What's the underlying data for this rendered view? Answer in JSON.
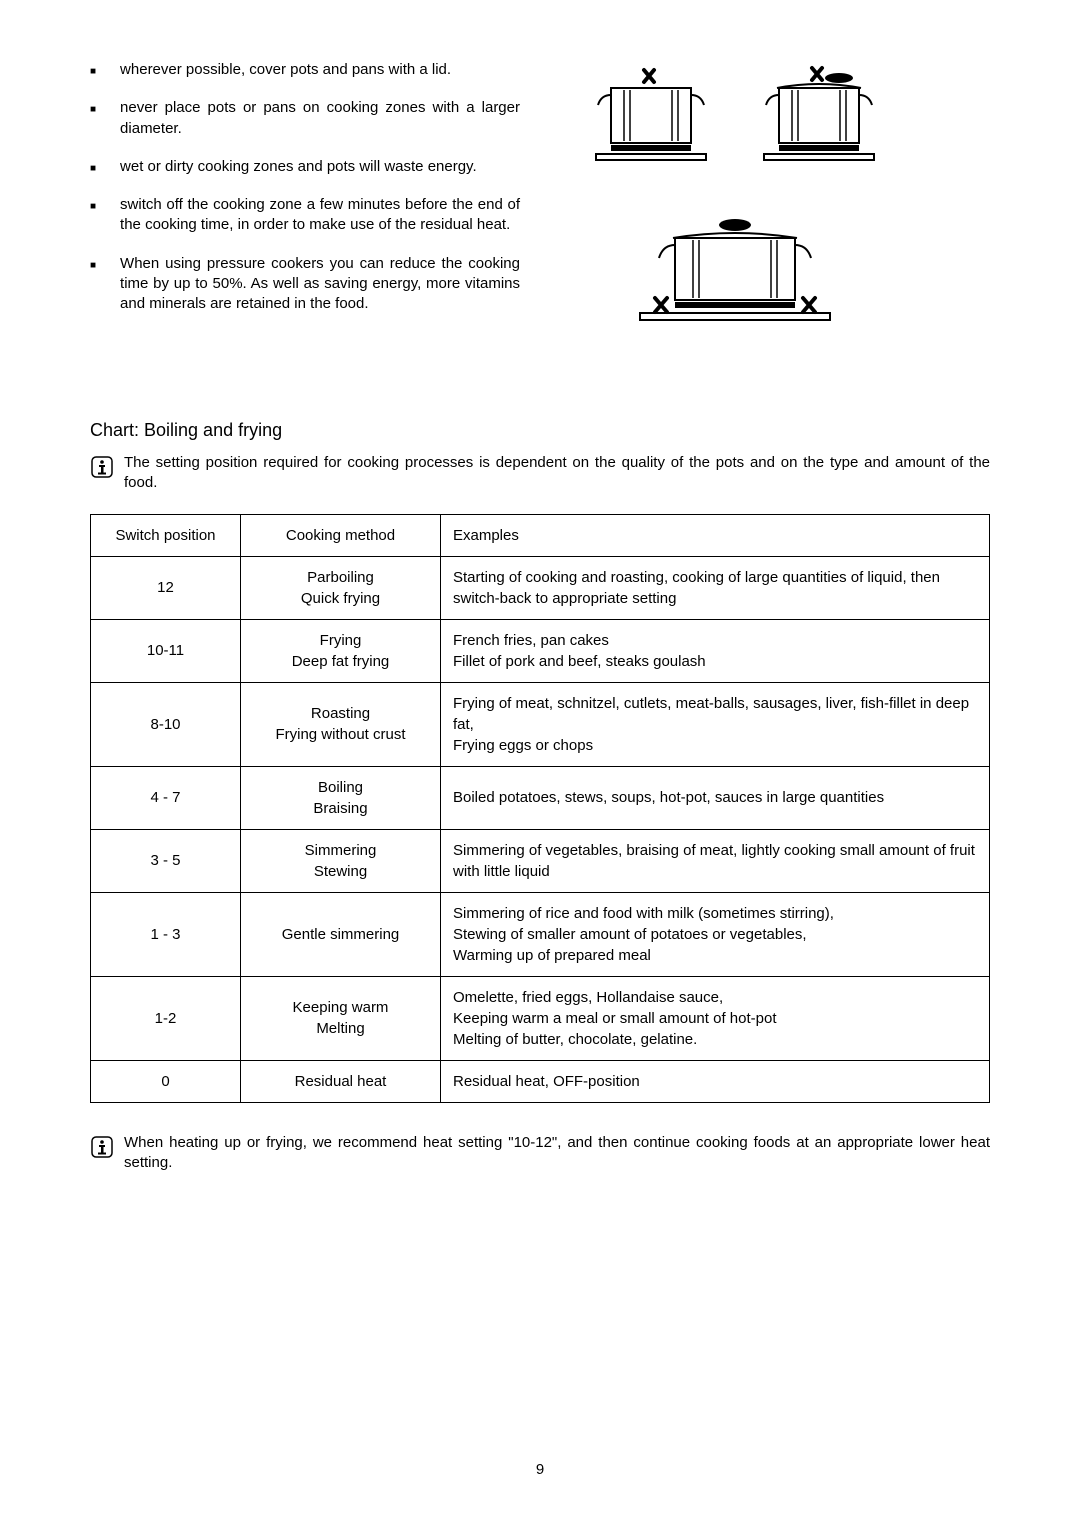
{
  "bullets": [
    "wherever possible, cover pots and pans with a lid.",
    "never place pots or pans on cooking zones with a larger diameter.",
    "wet or dirty cooking zones and pots will waste energy.",
    "switch off the cooking zone a few minutes before the end of the cooking time, in order to make use of the residual heat.",
    "When using pressure cookers you can reduce the cooking time by up to 50%. As well as saving energy, more vitamins and minerals are retained in the food."
  ],
  "chart": {
    "title": "Chart:  Boiling and frying",
    "info_top": "The setting position required for cooking processes is dependent on the quality of the pots and on the type and amount of the food.",
    "info_bottom": "When heating up or frying, we recommend heat setting \"10-12\", and then continue cooking foods at an appropriate lower heat setting.",
    "columns": [
      "Switch position",
      "Cooking method",
      "Examples"
    ],
    "rows": [
      {
        "switch": "12",
        "method": [
          "Parboiling",
          "Quick frying"
        ],
        "examples": "Starting of cooking and roasting, cooking of large quantities of liquid, then switch-back to appropriate setting"
      },
      {
        "switch": "10-11",
        "method": [
          "Frying",
          "Deep fat frying"
        ],
        "examples": "French fries, pan cakes\nFillet of pork and beef, steaks goulash"
      },
      {
        "switch": "8-10",
        "method": [
          "Roasting",
          "Frying without crust"
        ],
        "examples": "Frying of meat, schnitzel, cutlets, meat-balls, sausages, liver, fish-fillet in deep fat,\nFrying eggs or chops"
      },
      {
        "switch": "4 - 7",
        "method": [
          "Boiling",
          "Braising"
        ],
        "examples": "Boiled potatoes, stews, soups, hot-pot, sauces in large quantities"
      },
      {
        "switch": "3 - 5",
        "method": [
          "Simmering",
          "Stewing"
        ],
        "examples": "Simmering of vegetables, braising of meat, lightly cooking small amount of fruit with little liquid"
      },
      {
        "switch": "1 - 3",
        "method": [
          "Gentle simmering"
        ],
        "examples": "Simmering of rice and food with milk (sometimes stirring),\nStewing of smaller amount of potatoes or vegetables,\nWarming up of prepared meal"
      },
      {
        "switch": "1-2",
        "method": [
          "Keeping warm",
          "Melting"
        ],
        "examples": "Omelette, fried eggs, Hollandaise sauce,\nKeeping warm a meal or small amount of hot-pot\nMelting of butter, chocolate, gelatine."
      },
      {
        "switch": "0",
        "method": [
          "Residual heat"
        ],
        "examples": "Residual heat, OFF-position"
      }
    ]
  },
  "page_number": "9"
}
